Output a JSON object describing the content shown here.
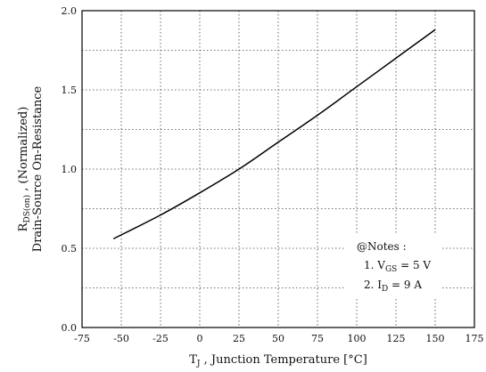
{
  "chart_data": {
    "type": "line",
    "xlabel_main": "T",
    "xlabel_sub": "J",
    "xlabel_rest": " , Junction Temperature  [",
    "xlabel_unit": "°C",
    "xlabel_close": "]",
    "ylabel_line1_main": "R",
    "ylabel_line1_sub": "DS(on)",
    "ylabel_line1_rest": "  ,  (Normalized)",
    "ylabel_line2": "Drain-Source On-Resistance",
    "xlim": [
      -75,
      175
    ],
    "ylim": [
      0.0,
      2.0
    ],
    "x_ticks": [
      -75,
      -50,
      -25,
      0,
      25,
      50,
      75,
      100,
      125,
      150,
      175
    ],
    "x_tick_labels": [
      "-75",
      "-50",
      "-25",
      "0",
      "25",
      "50",
      "75",
      "100",
      "125",
      "150",
      "175"
    ],
    "y_ticks": [
      0.0,
      0.5,
      1.0,
      1.5,
      2.0
    ],
    "y_tick_labels": [
      "0.0",
      "0.5",
      "1.0",
      "1.5",
      "2.0"
    ],
    "grid": true,
    "series": [
      {
        "x": [
          -55,
          -25,
          0,
          25,
          50,
          75,
          100,
          125,
          150
        ],
        "y": [
          0.56,
          0.71,
          0.85,
          1.0,
          1.17,
          1.34,
          1.52,
          1.7,
          1.88
        ]
      }
    ],
    "notes": {
      "title": "@Notes :",
      "line1_prefix": "1. V",
      "line1_sub": "GS",
      "line1_suffix": " = 5 V",
      "line2_prefix": "2. I",
      "line2_sub": "D",
      "line2_suffix": " = 9 A"
    }
  }
}
